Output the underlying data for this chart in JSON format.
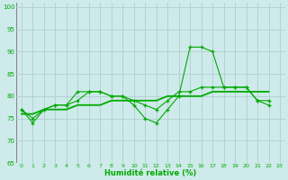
{
  "background_color": "#ceeaea",
  "grid_color": "#aacaca",
  "line_color": "#00aa00",
  "xlabel": "Humidité relative (%)",
  "xlabel_color": "#00aa00",
  "tick_color": "#00aa00",
  "ylim": [
    65,
    101
  ],
  "yticks": [
    65,
    70,
    75,
    80,
    85,
    90,
    95,
    100
  ],
  "xlim": [
    -0.5,
    23.5
  ],
  "xticks": [
    0,
    1,
    2,
    3,
    4,
    5,
    6,
    7,
    8,
    9,
    10,
    11,
    12,
    13,
    14,
    15,
    16,
    17,
    18,
    19,
    20,
    21,
    22,
    23
  ],
  "y_jagged": [
    77,
    74,
    77,
    78,
    78,
    81,
    81,
    81,
    80,
    80,
    78,
    75,
    74,
    77,
    80,
    91,
    91,
    90,
    82,
    82,
    82,
    79,
    78
  ],
  "y_smooth": [
    77,
    75,
    77,
    78,
    78,
    79,
    81,
    81,
    80,
    80,
    79,
    78,
    77,
    79,
    81,
    81,
    82,
    82,
    82,
    82,
    82,
    79,
    79
  ],
  "y_trend": [
    76,
    76,
    77,
    77,
    77,
    78,
    78,
    78,
    79,
    79,
    79,
    79,
    79,
    80,
    80,
    80,
    80,
    81,
    81,
    81,
    81,
    81,
    81
  ]
}
